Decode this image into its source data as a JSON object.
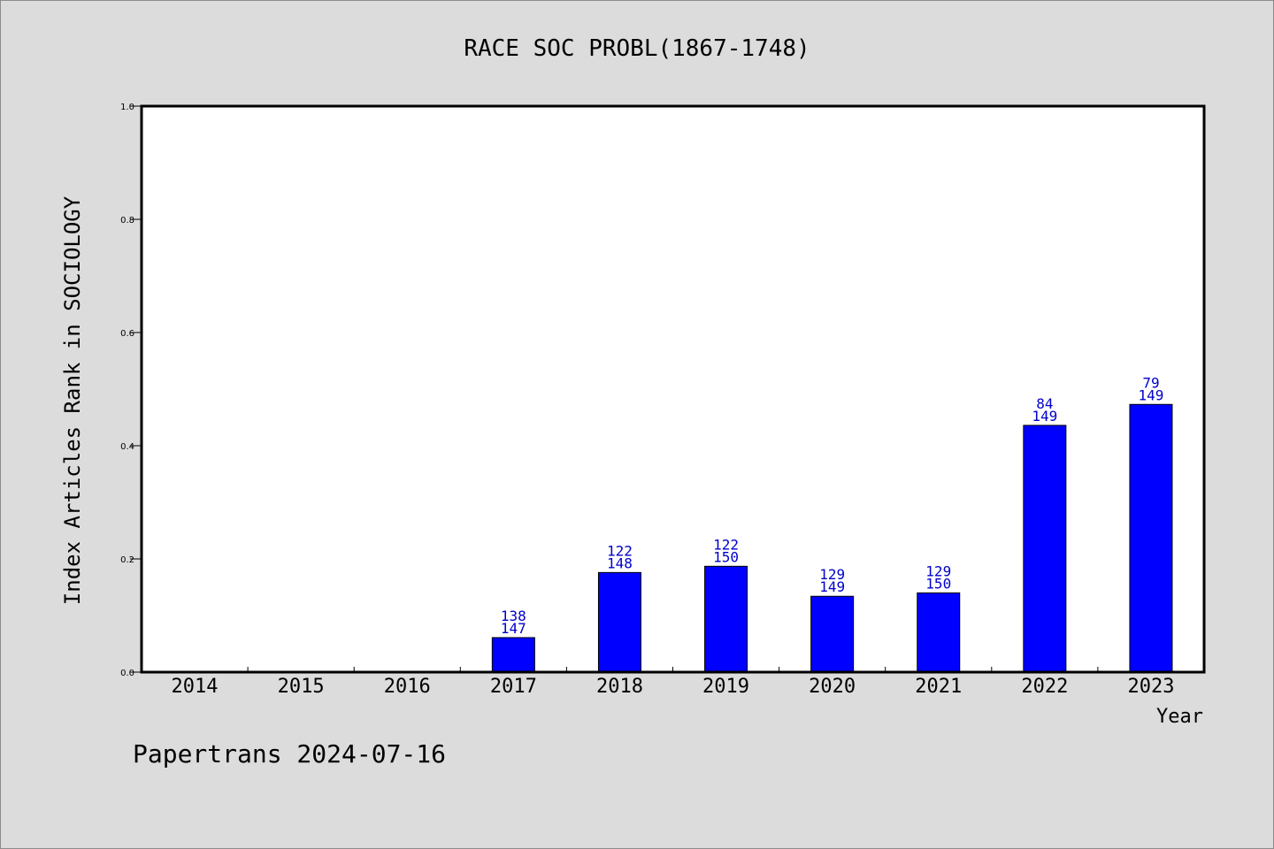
{
  "chart_data": {
    "type": "bar",
    "title": "RACE SOC PROBL(1867-1748)",
    "xlabel": "Year",
    "ylabel": "Index Articles Rank in SOCIOLOGY",
    "ylim": [
      0,
      1.0
    ],
    "yticks": [
      "0.0",
      "0.2",
      "0.4",
      "0.6",
      "0.8",
      "1.0"
    ],
    "categories": [
      "2014",
      "2015",
      "2016",
      "2017",
      "2018",
      "2019",
      "2020",
      "2021",
      "2022",
      "2023"
    ],
    "values": [
      null,
      null,
      null,
      0.061,
      0.176,
      0.187,
      0.134,
      0.14,
      0.436,
      0.473
    ],
    "labels": [
      null,
      null,
      null,
      [
        "138",
        "147"
      ],
      [
        "122",
        "148"
      ],
      [
        "122",
        "150"
      ],
      [
        "129",
        "149"
      ],
      [
        "129",
        "150"
      ],
      [
        "84",
        "149"
      ],
      [
        "79",
        "149"
      ]
    ],
    "bar_color": "#0000ff",
    "label_color": "#0000cc",
    "grid": false,
    "legend": "none"
  },
  "footer": "Papertrans 2024-07-16"
}
